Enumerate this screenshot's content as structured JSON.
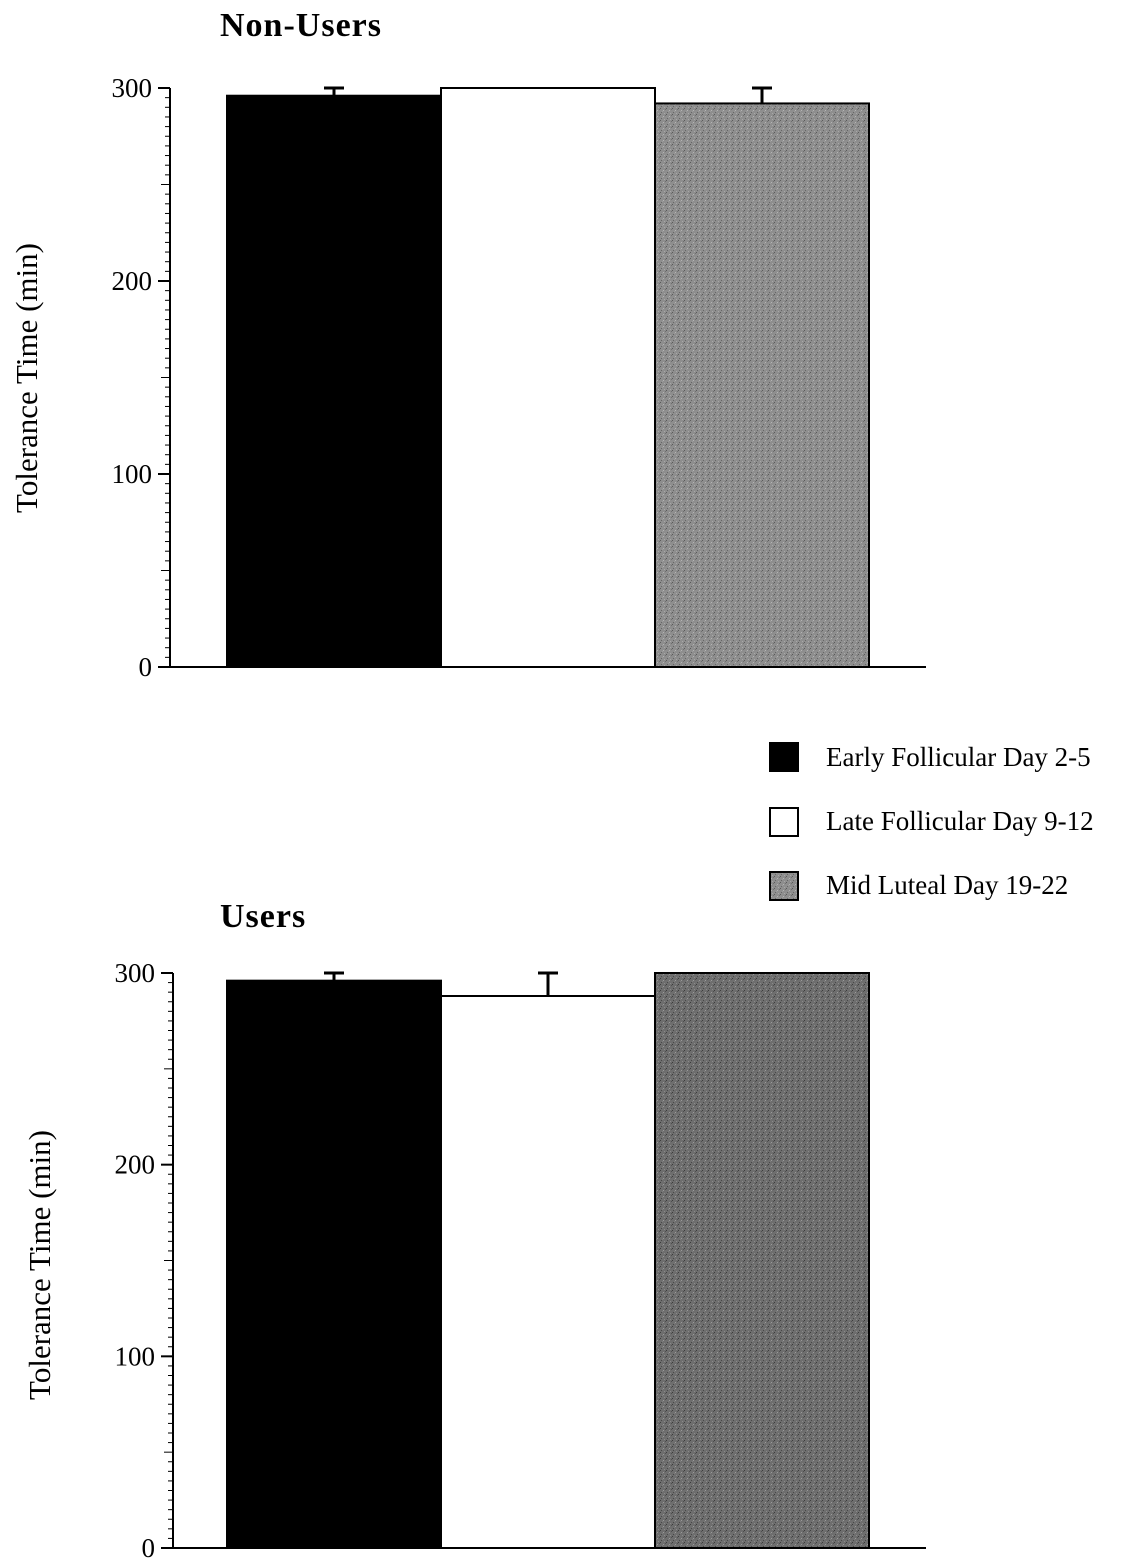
{
  "legend": [
    {
      "label": "Early Follicular Day 2-5",
      "color": "#000000"
    },
    {
      "label": "Late Follicular Day 9-12",
      "color": "#ffffff"
    },
    {
      "label": "Mid Luteal Day 19-22",
      "color": "#8c8c8c"
    }
  ],
  "chart_data": [
    {
      "type": "bar",
      "title": "Non-Users",
      "ylabel": "Tolerance Time (min)",
      "xlabel": "",
      "ylim": [
        0,
        300
      ],
      "yticks": [
        0,
        100,
        200,
        300
      ],
      "categories": [
        "Early Follicular Day 2-5",
        "Late Follicular Day 9-12",
        "Mid Luteal Day 19-22"
      ],
      "values": [
        296,
        300,
        292
      ],
      "error": [
        4,
        0,
        8
      ],
      "grid": false
    },
    {
      "type": "bar",
      "title": "Users",
      "ylabel": "Tolerance Time (min)",
      "xlabel": "",
      "ylim": [
        0,
        300
      ],
      "yticks": [
        0,
        100,
        200,
        300
      ],
      "categories": [
        "Early Follicular Day 2-5",
        "Late Follicular Day 9-12",
        "Mid Luteal Day 19-22"
      ],
      "values": [
        296,
        288,
        300
      ],
      "error": [
        4,
        12,
        0
      ],
      "grid": false
    }
  ]
}
